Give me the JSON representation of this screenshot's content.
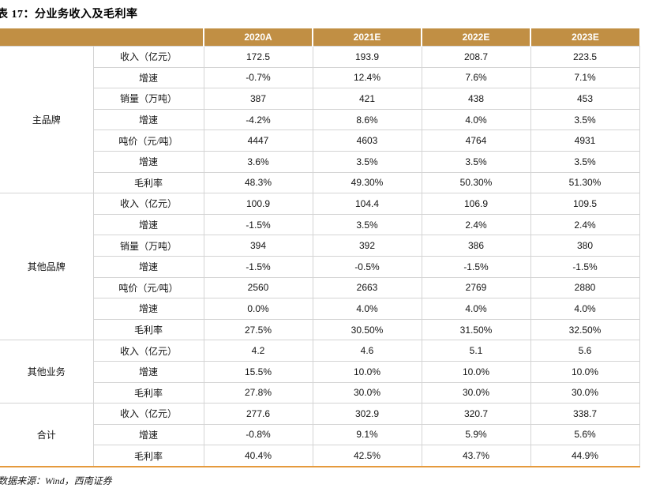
{
  "page": {
    "title": "表 17：分业务收入及毛利率",
    "source_note": "数据来源：Wind，西南证券"
  },
  "colors": {
    "header_bg": "#C18F44",
    "header_text": "#FFFFFF",
    "grid_line": "#D4D4D4",
    "bottom_rule": "#E59A3C"
  },
  "table": {
    "columns": [
      "2020A",
      "2021E",
      "2022E",
      "2023E"
    ],
    "sections": [
      {
        "group": "主品牌",
        "rows": [
          {
            "metric": "收入（亿元）",
            "values": [
              "172.5",
              "193.9",
              "208.7",
              "223.5"
            ]
          },
          {
            "metric": "增速",
            "values": [
              "-0.7%",
              "12.4%",
              "7.6%",
              "7.1%"
            ]
          },
          {
            "metric": "销量（万吨）",
            "values": [
              "387",
              "421",
              "438",
              "453"
            ]
          },
          {
            "metric": "增速",
            "values": [
              "-4.2%",
              "8.6%",
              "4.0%",
              "3.5%"
            ]
          },
          {
            "metric": "吨价（元/吨）",
            "values": [
              "4447",
              "4603",
              "4764",
              "4931"
            ]
          },
          {
            "metric": "增速",
            "values": [
              "3.6%",
              "3.5%",
              "3.5%",
              "3.5%"
            ]
          },
          {
            "metric": "毛利率",
            "values": [
              "48.3%",
              "49.30%",
              "50.30%",
              "51.30%"
            ]
          }
        ]
      },
      {
        "group": "其他品牌",
        "rows": [
          {
            "metric": "收入（亿元）",
            "values": [
              "100.9",
              "104.4",
              "106.9",
              "109.5"
            ]
          },
          {
            "metric": "增速",
            "values": [
              "-1.5%",
              "3.5%",
              "2.4%",
              "2.4%"
            ]
          },
          {
            "metric": "销量（万吨）",
            "values": [
              "394",
              "392",
              "386",
              "380"
            ]
          },
          {
            "metric": "增速",
            "values": [
              "-1.5%",
              "-0.5%",
              "-1.5%",
              "-1.5%"
            ]
          },
          {
            "metric": "吨价（元/吨）",
            "values": [
              "2560",
              "2663",
              "2769",
              "2880"
            ]
          },
          {
            "metric": "增速",
            "values": [
              "0.0%",
              "4.0%",
              "4.0%",
              "4.0%"
            ]
          },
          {
            "metric": "毛利率",
            "values": [
              "27.5%",
              "30.50%",
              "31.50%",
              "32.50%"
            ]
          }
        ]
      },
      {
        "group": "其他业务",
        "rows": [
          {
            "metric": "收入（亿元）",
            "values": [
              "4.2",
              "4.6",
              "5.1",
              "5.6"
            ]
          },
          {
            "metric": "增速",
            "values": [
              "15.5%",
              "10.0%",
              "10.0%",
              "10.0%"
            ]
          },
          {
            "metric": "毛利率",
            "values": [
              "27.8%",
              "30.0%",
              "30.0%",
              "30.0%"
            ]
          }
        ]
      },
      {
        "group": "合计",
        "rows": [
          {
            "metric": "收入（亿元）",
            "values": [
              "277.6",
              "302.9",
              "320.7",
              "338.7"
            ]
          },
          {
            "metric": "增速",
            "values": [
              "-0.8%",
              "9.1%",
              "5.9%",
              "5.6%"
            ]
          },
          {
            "metric": "毛利率",
            "values": [
              "40.4%",
              "42.5%",
              "43.7%",
              "44.9%"
            ]
          }
        ]
      }
    ]
  }
}
